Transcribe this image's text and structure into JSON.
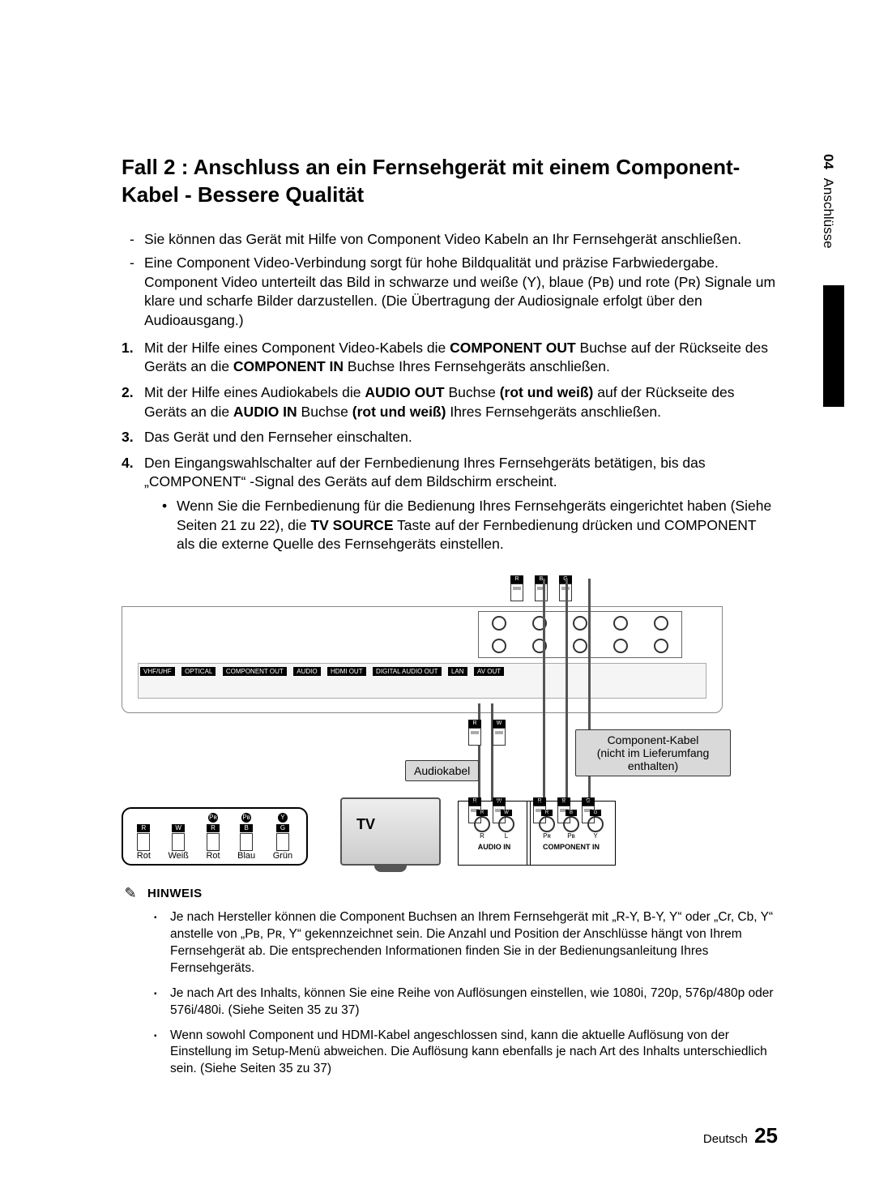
{
  "chapter": {
    "number": "04",
    "name": "Anschlüsse"
  },
  "title": "Fall 2 : Anschluss an ein Fernsehgerät mit einem Component-Kabel - Bessere Qualität",
  "intro_lines": [
    "Sie können das Gerät mit Hilfe von Component Video Kabeln an Ihr Fernsehgerät anschließen.",
    "Eine Component Video-Verbindung sorgt für hohe Bildqualität und präzise Farbwiedergabe. Component Video unterteilt das Bild in schwarze und weiße (Y), blaue (Pʙ) und rote (Pʀ) Signale um klare und scharfe Bilder darzustellen. (Die Übertragung der Audiosignale erfolgt über den Audioausgang.)"
  ],
  "steps": [
    {
      "n": "1.",
      "html": "Mit der Hilfe eines Component Video-Kabels die <b>COMPONENT OUT</b> Buchse auf der Rückseite des Geräts an die <b>COMPONENT IN</b> Buchse Ihres Fernsehgeräts anschließen."
    },
    {
      "n": "2.",
      "html": "Mit der Hilfe eines Audiokabels die <b>AUDIO OUT</b> Buchse <b>(rot und weiß)</b> auf der Rückseite des Geräts an die <b>AUDIO IN</b> Buchse <b>(rot und weiß)</b> Ihres Fernsehgeräts anschließen."
    },
    {
      "n": "3.",
      "html": "Das Gerät und den Fernseher einschalten."
    },
    {
      "n": "4.",
      "html": "Den Eingangswahlschalter auf der Fernbedienung Ihres Fernsehgeräts betätigen, bis das „COMPONENT“ -Signal des Geräts auf dem Bildschirm erscheint.",
      "sub": [
        "Wenn Sie die Fernbedienung für die Bedienung Ihres Fernsehgeräts eingerichtet haben (Siehe Seiten 21 zu 22), die <b>TV SOURCE</b> Taste auf der Fernbedienung drücken und COMPONENT als die externe Quelle des Fernsehgeräts einstellen."
      ]
    }
  ],
  "diagram": {
    "panel_chips": [
      "VHF/UHF",
      "OPTICAL",
      "COMPONENT OUT",
      "AUDIO",
      "HDMI OUT",
      "DIGITAL AUDIO OUT",
      "LAN",
      "AV OUT"
    ],
    "top_caps": [
      "R",
      "B",
      "G"
    ],
    "mid_caps_audio": [
      "R",
      "W"
    ],
    "mid_caps_comp": [
      "R",
      "B",
      "G"
    ],
    "label_audio": "Audiokabel",
    "label_component_l1": "Component-Kabel",
    "label_component_l2": "(nicht im Lieferumfang",
    "label_component_l3": "enthalten)",
    "legend_caps": [
      "R",
      "W",
      "R",
      "B",
      "G"
    ],
    "legend_dots": [
      "Pʀ",
      "Pʙ",
      "Y"
    ],
    "legend_labels": [
      "Rot",
      "Weiß",
      "Rot",
      "Blau",
      "Grün"
    ],
    "tv_label": "TV",
    "audio_in": {
      "title": "AUDIO IN",
      "caps": [
        "R",
        "W"
      ],
      "subs": [
        "R",
        "L"
      ]
    },
    "component_in": {
      "title": "COMPONENT IN",
      "caps": [
        "R",
        "B",
        "G"
      ],
      "subs": [
        "Pʀ",
        "Pʙ",
        "Y"
      ]
    }
  },
  "note_heading": "HINWEIS",
  "notes": [
    "Je nach Hersteller können die Component Buchsen an Ihrem Fernsehgerät mit „R-Y, B-Y, Y“ oder „Cr, Cb, Y“ anstelle von „Pʙ, Pʀ, Y“ gekennzeichnet sein. Die Anzahl und Position der Anschlüsse hängt von Ihrem Fernsehgerät ab. Die entsprechenden Informationen finden Sie in der Bedienungsanleitung Ihres Fernsehgeräts.",
    "Je nach Art des Inhalts, können Sie eine Reihe von Auflösungen einstellen, wie 1080i, 720p, 576p/480p oder 576i/480i. (Siehe Seiten 35 zu 37)",
    "Wenn sowohl Component und HDMI-Kabel angeschlossen sind, kann die aktuelle Auflösung von der Einstellung im Setup-Menü abweichen. Die Auflösung kann ebenfalls je nach Art des Inhalts unterschiedlich sein. (Siehe Seiten 35 zu 37)"
  ],
  "footer": {
    "lang": "Deutsch",
    "page": "25"
  }
}
